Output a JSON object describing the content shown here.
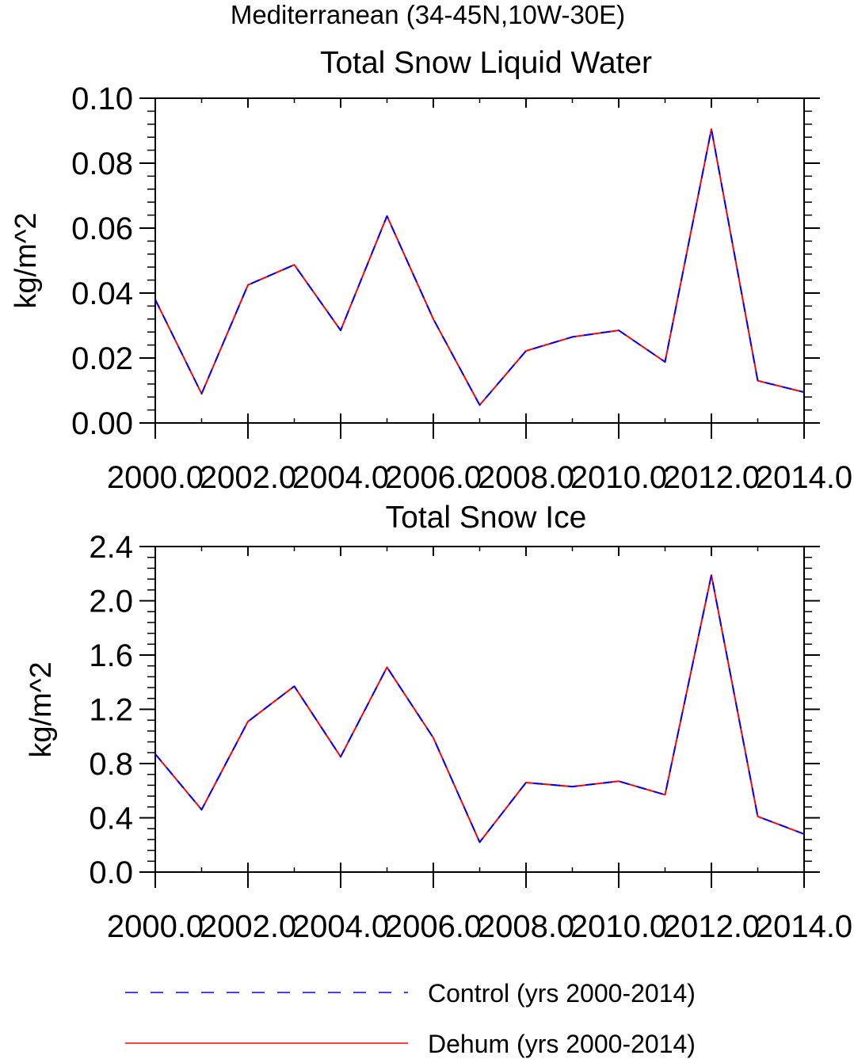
{
  "figure": {
    "title": "Mediterranean (34-45N,10W-30E)"
  },
  "legend": {
    "entries": [
      {
        "name": "Control (yrs 2000-2014)",
        "color": "#0000ff",
        "style": "dashed"
      },
      {
        "name": "Dehum (yrs 2000-2014)",
        "color": "#ff0000",
        "style": "solid"
      }
    ]
  },
  "chart_data": [
    {
      "type": "line",
      "title": "Total Snow Liquid Water",
      "xlabel": "",
      "ylabel": "kg/m^2",
      "xlim": [
        2000,
        2014
      ],
      "ylim": [
        0,
        0.1
      ],
      "x_ticks": [
        2000,
        2002,
        2004,
        2006,
        2008,
        2010,
        2012,
        2014
      ],
      "x_tick_labels": [
        "2000.0",
        "2002.0",
        "2004.0",
        "2006.0",
        "2008.0",
        "2010.0",
        "2012.0",
        "2014.0"
      ],
      "y_ticks": [
        0,
        0.02,
        0.04,
        0.06,
        0.08,
        0.1
      ],
      "y_tick_labels": [
        "0.00",
        "0.02",
        "0.04",
        "0.06",
        "0.08",
        "0.10"
      ],
      "grid": false,
      "x": [
        2000,
        2001,
        2002,
        2003,
        2004,
        2005,
        2006,
        2007,
        2008,
        2009,
        2010,
        2011,
        2012,
        2013,
        2014
      ],
      "series": [
        {
          "name": "Control (yrs 2000-2014)",
          "color": "#0000ff",
          "style": "dashed",
          "values": [
            0.038,
            0.009,
            0.0425,
            0.0487,
            0.0285,
            0.0637,
            0.032,
            0.0055,
            0.0222,
            0.0265,
            0.0285,
            0.0188,
            0.0905,
            0.013,
            0.0095
          ]
        },
        {
          "name": "Dehum (yrs 2000-2014)",
          "color": "#ff0000",
          "style": "solid",
          "values": [
            0.038,
            0.009,
            0.0425,
            0.0487,
            0.0285,
            0.0637,
            0.032,
            0.0055,
            0.0222,
            0.0265,
            0.0285,
            0.0188,
            0.0905,
            0.013,
            0.0095
          ]
        }
      ]
    },
    {
      "type": "line",
      "title": "Total Snow Ice",
      "xlabel": "",
      "ylabel": "kg/m^2",
      "xlim": [
        2000,
        2014
      ],
      "ylim": [
        0,
        2.4
      ],
      "x_ticks": [
        2000,
        2002,
        2004,
        2006,
        2008,
        2010,
        2012,
        2014
      ],
      "x_tick_labels": [
        "2000.0",
        "2002.0",
        "2004.0",
        "2006.0",
        "2008.0",
        "2010.0",
        "2012.0",
        "2014.0"
      ],
      "y_ticks": [
        0,
        0.4,
        0.8,
        1.2,
        1.6,
        2.0,
        2.4
      ],
      "y_tick_labels": [
        "0.0",
        "0.4",
        "0.8",
        "1.2",
        "1.6",
        "2.0",
        "2.4"
      ],
      "grid": false,
      "x": [
        2000,
        2001,
        2002,
        2003,
        2004,
        2005,
        2006,
        2007,
        2008,
        2009,
        2010,
        2011,
        2012,
        2013,
        2014
      ],
      "series": [
        {
          "name": "Control (yrs 2000-2014)",
          "color": "#0000ff",
          "style": "dashed",
          "values": [
            0.87,
            0.46,
            1.11,
            1.37,
            0.85,
            1.51,
            0.99,
            0.22,
            0.66,
            0.63,
            0.67,
            0.57,
            2.19,
            0.41,
            0.28
          ]
        },
        {
          "name": "Dehum (yrs 2000-2014)",
          "color": "#ff0000",
          "style": "solid",
          "values": [
            0.87,
            0.46,
            1.11,
            1.37,
            0.85,
            1.51,
            0.99,
            0.22,
            0.66,
            0.63,
            0.67,
            0.57,
            2.19,
            0.41,
            0.28
          ]
        }
      ]
    }
  ]
}
